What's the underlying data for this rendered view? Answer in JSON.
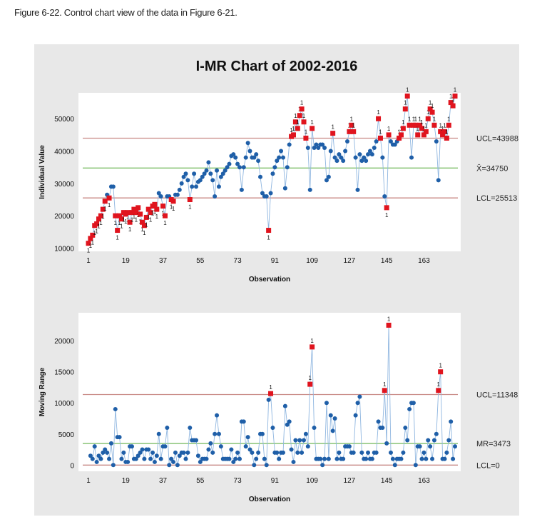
{
  "caption": "Figure 6-22. Control chart view of the data in Figure 6-21.",
  "colors": {
    "points": "#1f5fa8",
    "out_of_control": "#e0141e",
    "center_line": "#7fbf6a",
    "limit_line": "#c98a86",
    "line": "#8fb6e0"
  },
  "chart_data": [
    {
      "type": "line",
      "title": "I-MR Chart of 2002-2016",
      "xlabel": "Observation",
      "ylabel": "Individual Value",
      "x_ticks": [
        1,
        19,
        37,
        55,
        73,
        91,
        109,
        127,
        145,
        163
      ],
      "y_ticks": [
        10000,
        20000,
        30000,
        40000,
        50000
      ],
      "ylim": [
        9000,
        58000
      ],
      "limits": {
        "ucl": 43988,
        "center": 34750,
        "lcl": 25513
      },
      "limit_labels": {
        "ucl": "UCL=43988",
        "center": "X̄=34750",
        "lcl": "LCL=25513"
      },
      "flag_label": "1",
      "values": [
        11500,
        13000,
        14000,
        17000,
        17500,
        19000,
        20000,
        22000,
        24500,
        26500,
        25500,
        29000,
        29000,
        20000,
        15500,
        20000,
        19000,
        21000,
        20500,
        21000,
        18000,
        21000,
        22000,
        21000,
        22500,
        20500,
        18000,
        17000,
        19500,
        22000,
        21000,
        23000,
        23500,
        22000,
        27000,
        26000,
        23000,
        20000,
        26000,
        26000,
        25000,
        24500,
        26500,
        26500,
        28000,
        30000,
        32000,
        33000,
        31000,
        25000,
        29000,
        33000,
        29000,
        30500,
        31000,
        32000,
        33000,
        34000,
        36500,
        33000,
        31000,
        26000,
        34000,
        29000,
        32000,
        33000,
        34000,
        35000,
        36000,
        38500,
        39000,
        38000,
        36000,
        35000,
        28000,
        35000,
        38000,
        42500,
        40000,
        38000,
        38000,
        39000,
        37000,
        32000,
        27000,
        26000,
        26000,
        15500,
        27000,
        33000,
        35000,
        37000,
        38000,
        40000,
        38000,
        28500,
        35000,
        42000,
        44500,
        45000,
        49000,
        47000,
        51000,
        53000,
        49000,
        44000,
        41000,
        28000,
        47000,
        41000,
        42000,
        41000,
        42000,
        42000,
        41000,
        31000,
        32000,
        40000,
        45500,
        38000,
        37000,
        39000,
        38000,
        37000,
        40000,
        43000,
        46000,
        48000,
        46000,
        38000,
        28000,
        39000,
        37000,
        38000,
        37000,
        39000,
        40000,
        39000,
        41000,
        43000,
        50000,
        44000,
        38000,
        26000,
        22500,
        45000,
        43000,
        42000,
        42000,
        43000,
        44000,
        45000,
        47000,
        53000,
        57000,
        48000,
        38000,
        48000,
        48000,
        45000,
        48000,
        47000,
        45000,
        46000,
        50000,
        53000,
        52000,
        48000,
        43000,
        31000,
        46000,
        45000,
        46000,
        44000,
        48000,
        55000,
        54000,
        57000
      ]
    },
    {
      "type": "line",
      "xlabel": "Observation",
      "ylabel": "Moving Range",
      "x_ticks": [
        1,
        19,
        37,
        55,
        73,
        91,
        109,
        127,
        145,
        163
      ],
      "y_ticks": [
        0,
        5000,
        10000,
        15000,
        20000
      ],
      "ylim": [
        -1000,
        24500
      ],
      "limits": {
        "ucl": 11348,
        "center": 3473,
        "lcl": 0
      },
      "limit_labels": {
        "ucl": "UCL=11348",
        "center": "MR=3473",
        "lcl": "LCL=0"
      },
      "flag_label": "1",
      "values": [
        null,
        1500,
        1000,
        3000,
        500,
        1500,
        1000,
        2000,
        2500,
        2000,
        1000,
        3500,
        0,
        9000,
        4500,
        4500,
        1000,
        2000,
        500,
        500,
        3000,
        3000,
        1000,
        1000,
        1500,
        2000,
        2500,
        1000,
        2500,
        2500,
        1000,
        2000,
        500,
        1500,
        5000,
        1000,
        3000,
        3000,
        6000,
        0,
        1000,
        500,
        2000,
        0,
        1500,
        2000,
        2000,
        1000,
        2000,
        6000,
        4000,
        4000,
        4000,
        1500,
        500,
        1000,
        1000,
        1000,
        2500,
        3500,
        2000,
        5000,
        8000,
        5000,
        3000,
        1000,
        1000,
        1000,
        1000,
        2500,
        500,
        1000,
        2000,
        1000,
        7000,
        7000,
        3000,
        4500,
        2500,
        2000,
        0,
        1000,
        2000,
        5000,
        5000,
        1000,
        0,
        10500,
        11500,
        6000,
        2000,
        2000,
        1000,
        2000,
        2000,
        9500,
        6500,
        7000,
        2500,
        500,
        4000,
        2000,
        4000,
        2000,
        4000,
        5000,
        3000,
        13000,
        19000,
        6000,
        1000,
        1000,
        1000,
        0,
        1000,
        10000,
        1000,
        8000,
        5500,
        7500,
        1000,
        2000,
        1000,
        1000,
        3000,
        3000,
        3000,
        2000,
        2000,
        8000,
        10000,
        11000,
        2000,
        1000,
        1000,
        2000,
        1000,
        1000,
        2000,
        2000,
        7000,
        6000,
        6000,
        12000,
        3500,
        22500,
        2000,
        1000,
        0,
        1000,
        1000,
        1000,
        2000,
        6000,
        4000,
        9000,
        10000,
        10000,
        0,
        3000,
        3000,
        1000,
        2000,
        1000,
        4000,
        3000,
        1000,
        4000,
        5000,
        12000,
        15000,
        1000,
        1000,
        2000,
        4000,
        7000,
        1000,
        3000
      ]
    }
  ]
}
